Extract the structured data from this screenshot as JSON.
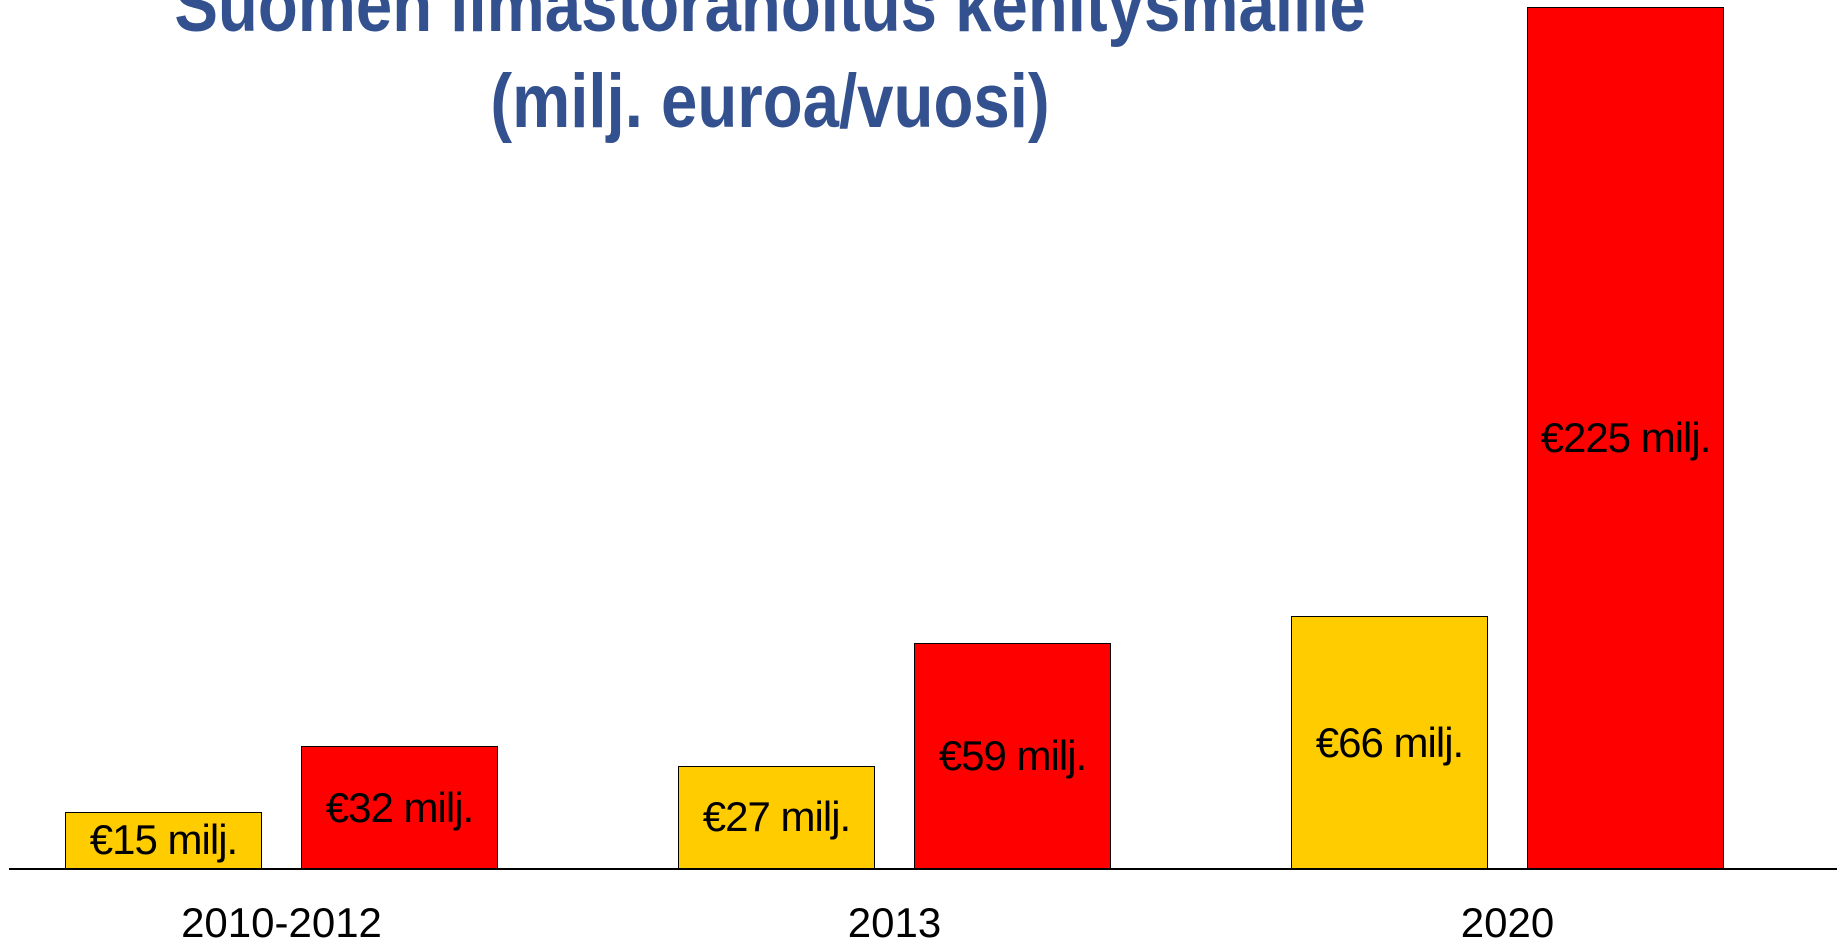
{
  "chart_data": {
    "type": "bar",
    "title": "Suomen ilmastorahoitus kehitysmaille\n(milj. euroa/vuosi)",
    "categories": [
      "2010-2012",
      "2013",
      "2020"
    ],
    "series": [
      {
        "color": "#ffcc00",
        "values": [
          15,
          27,
          66
        ],
        "value_labels": [
          "€15 milj.",
          "€27 milj.",
          "€66 milj."
        ]
      },
      {
        "color": "#ff0000",
        "values": [
          32,
          59,
          225
        ],
        "value_labels": [
          "€32 milj.",
          "€59 milj.",
          "€225 milj."
        ]
      }
    ],
    "ylim": [
      0,
      225
    ]
  }
}
